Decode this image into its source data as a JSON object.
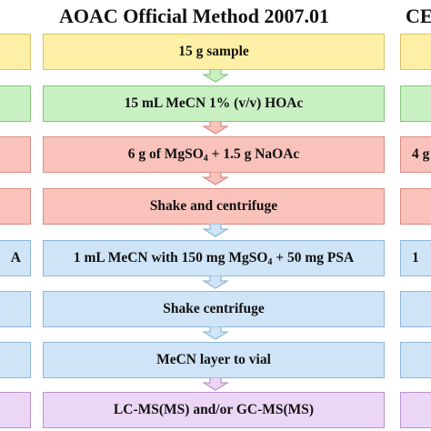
{
  "titles": {
    "main": "AOAC Official Method 2007.01",
    "right": "CE"
  },
  "steps": [
    {
      "id": "sample",
      "color": "yellow",
      "text": "15 g sample",
      "left_text": "",
      "right_text": ""
    },
    {
      "id": "solvent",
      "color": "green",
      "text": "15 mL MeCN 1% (v/v) HOAc",
      "left_text": "",
      "right_text": ""
    },
    {
      "id": "salts",
      "color": "red",
      "text": "6 g of MgSO",
      "sub": "4",
      "text_after": " + 1.5 g NaOAc",
      "left_text": "",
      "right_text": "4 g"
    },
    {
      "id": "shake1",
      "color": "red",
      "text": "Shake and centrifuge",
      "left_text": "",
      "right_text": ""
    },
    {
      "id": "dspe",
      "color": "blue",
      "text": "1 mL MeCN with 150 mg MgSO",
      "sub": "4",
      "text_after": " + 50 mg PSA",
      "left_text": "A",
      "right_text": "1"
    },
    {
      "id": "shake2",
      "color": "blue",
      "text": "Shake centrifuge",
      "left_text": "",
      "right_text": ""
    },
    {
      "id": "transfer",
      "color": "blue",
      "text": "MeCN layer to vial",
      "left_text": "",
      "right_text": ""
    },
    {
      "id": "analysis",
      "color": "purple",
      "text": "LC-MS(MS) and/or GC-MS(MS)",
      "left_text": "",
      "right_text": ""
    }
  ]
}
